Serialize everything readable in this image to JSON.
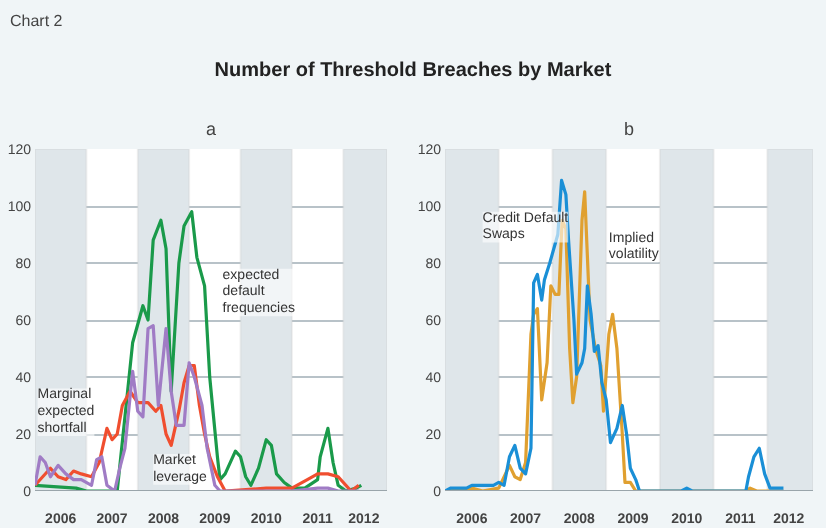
{
  "chart_data": [
    {
      "type": "line",
      "title": "a",
      "annotations": [
        "Chart 2",
        "Number of Threshold Breaches by Market",
        "expected default frequencies",
        "Marginal expected shortfall",
        "Market leverage"
      ],
      "xlim": [
        2006,
        2012.85
      ],
      "xticks": [
        {
          "value": 2006.5,
          "label": "2006"
        },
        {
          "value": 2007.5,
          "label": "2007"
        },
        {
          "value": 2008.5,
          "label": "2008"
        },
        {
          "value": 2009.5,
          "label": "2009"
        },
        {
          "value": 2010.5,
          "label": "2010"
        },
        {
          "value": 2011.5,
          "label": "2011"
        },
        {
          "value": 2012.4,
          "label": "2012"
        }
      ],
      "ylim": [
        0,
        120
      ],
      "yticks": [
        0,
        20,
        40,
        60,
        80,
        100,
        120
      ],
      "grid": "y",
      "line_style": "solid",
      "bands": [
        {
          "axis": "x",
          "from": 2006,
          "to": 2007,
          "color": "#dfe6ea"
        },
        {
          "axis": "x",
          "from": 2008,
          "to": 2009,
          "color": "#dfe6ea"
        },
        {
          "axis": "x",
          "from": 2010,
          "to": 2011,
          "color": "#dfe6ea"
        },
        {
          "axis": "x",
          "from": 2012,
          "to": 2012.85,
          "color": "#dfe6ea"
        }
      ],
      "series": [
        {
          "color": "#1a9a4a",
          "x": [
            2006.0,
            2006.8,
            2007.0,
            2007.6,
            2007.9,
            2008.1,
            2008.2,
            2008.3,
            2008.45,
            2008.55,
            2008.65,
            2008.8,
            2008.9,
            2009.05,
            2009.15,
            2009.3,
            2009.4,
            2009.55,
            2009.6,
            2009.7,
            2009.9,
            2010.0,
            2010.1,
            2010.2,
            2010.35,
            2010.5,
            2010.6,
            2010.7,
            2010.85,
            2011.0,
            2011.25,
            2011.5,
            2011.55,
            2011.7,
            2011.8,
            2011.9,
            2012.05,
            2012.25,
            2012.35
          ],
          "values": [
            2,
            1,
            0,
            0,
            52,
            65,
            60,
            88,
            95,
            85,
            35,
            80,
            93,
            98,
            82,
            72,
            40,
            12,
            4,
            6,
            14,
            12,
            5,
            2,
            8,
            18,
            16,
            6,
            3,
            1,
            1,
            4,
            12,
            22,
            10,
            2,
            0,
            1,
            2
          ]
        },
        {
          "color": "#f04e2f",
          "x": [
            2006.0,
            2006.3,
            2006.45,
            2006.6,
            2006.75,
            2006.9,
            2007.1,
            2007.25,
            2007.4,
            2007.5,
            2007.6,
            2007.7,
            2007.85,
            2008.0,
            2008.2,
            2008.35,
            2008.45,
            2008.55,
            2008.65,
            2008.8,
            2008.9,
            2009.0,
            2009.1,
            2009.2,
            2009.3,
            2009.4,
            2009.55,
            2009.7,
            2010.5,
            2010.8,
            2011.0,
            2011.3,
            2011.5,
            2011.7,
            2011.9,
            2012.05,
            2012.15,
            2012.3
          ],
          "values": [
            2,
            8,
            5,
            4,
            7,
            6,
            5,
            10,
            22,
            18,
            20,
            30,
            35,
            31,
            31,
            28,
            30,
            20,
            16,
            28,
            38,
            44,
            44,
            30,
            20,
            12,
            5,
            0,
            1,
            1,
            1,
            4,
            6,
            6,
            5,
            2,
            0,
            2
          ]
        },
        {
          "color": "#a07cc5",
          "x": [
            2006.0,
            2006.1,
            2006.2,
            2006.3,
            2006.45,
            2006.6,
            2006.75,
            2006.9,
            2007.1,
            2007.2,
            2007.3,
            2007.4,
            2007.55,
            2007.65,
            2007.75,
            2007.9,
            2008.0,
            2008.1,
            2008.2,
            2008.3,
            2008.4,
            2008.55,
            2008.65,
            2008.75,
            2008.9,
            2009.0,
            2009.1,
            2009.25,
            2009.35,
            2009.5,
            2009.6,
            2011.0,
            2011.5,
            2011.7,
            2011.9,
            2012.3
          ],
          "values": [
            2,
            12,
            10,
            5,
            9,
            6,
            4,
            4,
            2,
            11,
            12,
            2,
            0,
            8,
            15,
            42,
            28,
            26,
            57,
            58,
            30,
            57,
            35,
            23,
            23,
            45,
            40,
            30,
            15,
            2,
            0,
            0,
            1,
            1,
            0,
            0
          ]
        }
      ]
    },
    {
      "type": "line",
      "title": "b",
      "annotations": [
        "Credit Default Swaps",
        "Implied volatility"
      ],
      "xlim": [
        2006,
        2012.85
      ],
      "xticks": [
        {
          "value": 2006.5,
          "label": "2006"
        },
        {
          "value": 2007.5,
          "label": "2007"
        },
        {
          "value": 2008.5,
          "label": "2008"
        },
        {
          "value": 2009.5,
          "label": "2009"
        },
        {
          "value": 2010.5,
          "label": "2010"
        },
        {
          "value": 2011.5,
          "label": "2011"
        },
        {
          "value": 2012.4,
          "label": "2012"
        }
      ],
      "ylim": [
        0,
        120
      ],
      "yticks": [
        0,
        20,
        40,
        60,
        80,
        100,
        120
      ],
      "grid": "y",
      "line_style": "solid",
      "bands": [
        {
          "axis": "x",
          "from": 2006,
          "to": 2007,
          "color": "#dfe6ea"
        },
        {
          "axis": "x",
          "from": 2008,
          "to": 2009,
          "color": "#dfe6ea"
        },
        {
          "axis": "x",
          "from": 2010,
          "to": 2011,
          "color": "#dfe6ea"
        },
        {
          "axis": "x",
          "from": 2012,
          "to": 2012.85,
          "color": "#dfe6ea"
        }
      ],
      "series": [
        {
          "color": "#e0a030",
          "x": [
            2006.0,
            2006.5,
            2006.7,
            2007.0,
            2007.2,
            2007.3,
            2007.4,
            2007.5,
            2007.6,
            2007.65,
            2007.72,
            2007.8,
            2007.9,
            2007.97,
            2008.05,
            2008.12,
            2008.18,
            2008.25,
            2008.32,
            2008.38,
            2008.45,
            2008.55,
            2008.6,
            2008.7,
            2008.8,
            2008.9,
            2008.95,
            2009.05,
            2009.12,
            2009.2,
            2009.3,
            2009.35,
            2009.45,
            2009.55,
            2011.6,
            2011.68,
            2011.8,
            2012.3
          ],
          "values": [
            0,
            1,
            0,
            1,
            9,
            5,
            4,
            10,
            55,
            62,
            64,
            32,
            45,
            72,
            69,
            69,
            95,
            92,
            50,
            31,
            40,
            95,
            105,
            60,
            50,
            44,
            28,
            55,
            62,
            50,
            20,
            3,
            3,
            0,
            0,
            1,
            0,
            0
          ]
        },
        {
          "color": "#1a8fd6",
          "x": [
            2006.0,
            2006.1,
            2006.4,
            2006.5,
            2006.9,
            2007.0,
            2007.1,
            2007.2,
            2007.3,
            2007.4,
            2007.5,
            2007.6,
            2007.65,
            2007.72,
            2007.8,
            2007.85,
            2007.95,
            2008.1,
            2008.17,
            2008.25,
            2008.3,
            2008.4,
            2008.45,
            2008.55,
            2008.6,
            2008.65,
            2008.72,
            2008.78,
            2008.85,
            2008.92,
            2009.0,
            2009.08,
            2009.2,
            2009.3,
            2009.38,
            2009.45,
            2009.55,
            2009.62,
            2010.4,
            2010.5,
            2010.6,
            2011.6,
            2011.65,
            2011.75,
            2011.85,
            2011.95,
            2012.05,
            2012.2,
            2012.3
          ],
          "values": [
            0,
            1,
            1,
            2,
            2,
            3,
            2,
            12,
            16,
            8,
            6,
            15,
            73,
            76,
            67,
            74,
            80,
            90,
            109,
            104,
            88,
            60,
            41,
            45,
            50,
            72,
            62,
            49,
            51,
            38,
            32,
            17,
            22,
            30,
            20,
            8,
            4,
            0,
            0,
            1,
            0,
            0,
            5,
            12,
            15,
            6,
            1,
            1,
            1
          ]
        }
      ]
    }
  ]
}
